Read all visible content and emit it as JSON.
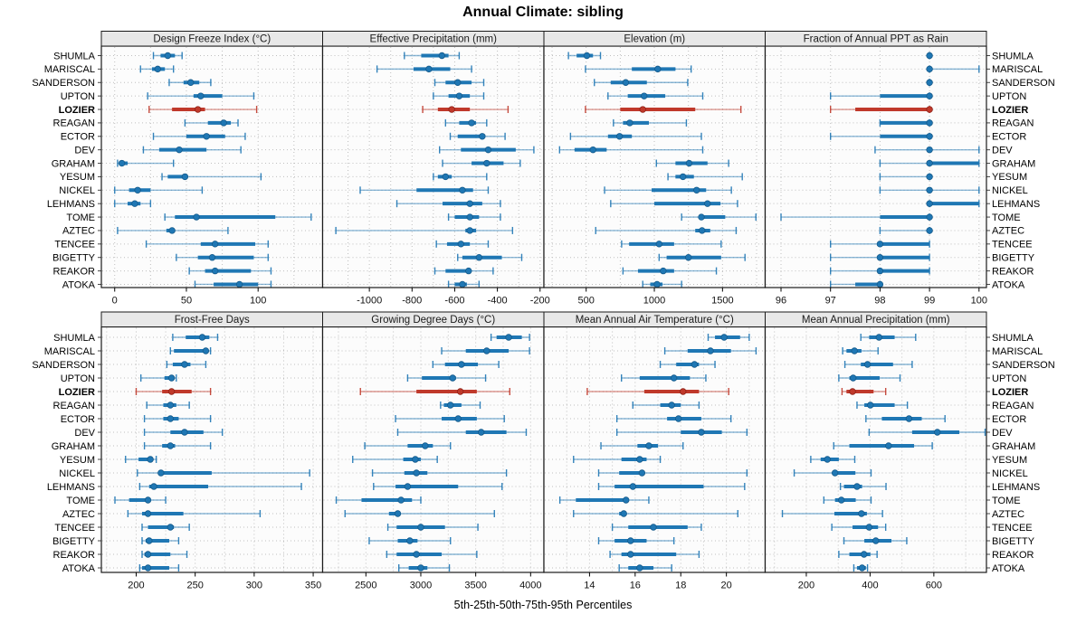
{
  "title": "Annual Climate: sibling",
  "caption": "5th-25th-50th-75th-95th Percentiles",
  "stations": [
    "SHUMLA",
    "MARISCAL",
    "SANDERSON",
    "UPTON",
    "LOZIER",
    "REAGAN",
    "ECTOR",
    "DEV",
    "GRAHAM",
    "YESUM",
    "NICKEL",
    "LEHMANS",
    "TOME",
    "AZTEC",
    "TENCEE",
    "BIGETTY",
    "REAKOR",
    "ATOKA"
  ],
  "highlight_station": "LOZIER",
  "colors": {
    "series": "#1f77b4",
    "series_dark": "#155a8a",
    "highlight": "#c0392b",
    "highlight_dark": "#8f2318",
    "grid": "#bfbfbf",
    "strip_bg": "#e8e8e8",
    "panel_bg": "#fcfcfc",
    "border": "#1a1a1a",
    "tick_text": "#111111"
  },
  "chart_data": {
    "type": "dot-whisker-trellis",
    "percentiles": [
      5,
      25,
      50,
      75,
      95
    ],
    "panels": [
      {
        "title": "Design Freeze Index (°C)",
        "grid_row": 0,
        "grid_col": 0,
        "xlim": [
          -9.3,
          145
        ],
        "ticks": [
          0,
          50,
          100
        ],
        "minor_ticks": [
          25,
          75,
          125
        ],
        "values": [
          [
            27,
            32,
            37,
            42,
            47
          ],
          [
            18,
            26,
            30,
            35,
            41
          ],
          [
            38,
            48,
            53,
            59,
            67
          ],
          [
            23,
            55,
            60,
            75,
            97
          ],
          [
            24,
            40,
            58,
            63,
            99
          ],
          [
            49,
            65,
            76,
            81,
            86
          ],
          [
            27,
            50,
            64,
            77,
            91
          ],
          [
            20,
            31,
            45,
            64,
            88
          ],
          [
            2,
            3,
            5,
            9,
            41
          ],
          [
            33,
            37,
            49,
            50,
            102
          ],
          [
            0,
            10,
            16,
            25,
            61
          ],
          [
            0,
            9,
            14,
            18,
            25
          ],
          [
            35,
            42,
            57,
            112,
            137
          ],
          [
            2,
            36,
            40,
            42,
            79
          ],
          [
            22,
            60,
            70,
            98,
            107
          ],
          [
            43,
            58,
            68,
            97,
            107
          ],
          [
            52,
            63,
            70,
            95,
            109
          ],
          [
            56,
            69,
            87,
            100,
            109
          ]
        ]
      },
      {
        "title": "Effective Precipitation (mm)",
        "grid_row": 0,
        "grid_col": 1,
        "xlim": [
          -1219,
          -182
        ],
        "ticks": [
          -1000,
          -800,
          -600,
          -400,
          -200
        ],
        "minor_ticks": [
          -1100,
          -900,
          -700,
          -500,
          -300
        ],
        "values": [
          [
            -836,
            -757,
            -660,
            -629,
            -579
          ],
          [
            -964,
            -793,
            -721,
            -621,
            -521
          ],
          [
            -693,
            -643,
            -586,
            -521,
            -464
          ],
          [
            -700,
            -629,
            -579,
            -529,
            -464
          ],
          [
            -750,
            -679,
            -614,
            -529,
            -350
          ],
          [
            -643,
            -579,
            -521,
            -500,
            -450
          ],
          [
            -621,
            -586,
            -471,
            -457,
            -364
          ],
          [
            -671,
            -571,
            -443,
            -314,
            -229
          ],
          [
            -657,
            -521,
            -450,
            -371,
            -293
          ],
          [
            -700,
            -679,
            -643,
            -614,
            -450
          ],
          [
            -1043,
            -779,
            -564,
            -514,
            -443
          ],
          [
            -871,
            -657,
            -529,
            -471,
            -386
          ],
          [
            -629,
            -600,
            -529,
            -486,
            -386
          ],
          [
            -1157,
            -550,
            -529,
            -500,
            -329
          ],
          [
            -686,
            -636,
            -571,
            -529,
            -443
          ],
          [
            -586,
            -564,
            -486,
            -379,
            -286
          ],
          [
            -693,
            -643,
            -535,
            -525,
            -420
          ],
          [
            -629,
            -600,
            -564,
            -543,
            -486
          ]
        ]
      },
      {
        "title": "Elevation (m)",
        "grid_row": 0,
        "grid_col": 2,
        "xlim": [
          190,
          1813
        ],
        "ticks": [
          500,
          1000,
          1500
        ],
        "minor_ticks": [
          250,
          750,
          1250,
          1750
        ],
        "values": [
          [
            370,
            430,
            505,
            550,
            605
          ],
          [
            495,
            835,
            1025,
            1155,
            1270
          ],
          [
            560,
            680,
            790,
            945,
            1245
          ],
          [
            660,
            805,
            925,
            1080,
            1355
          ],
          [
            495,
            750,
            915,
            1300,
            1635
          ],
          [
            700,
            770,
            820,
            960,
            1235
          ],
          [
            385,
            660,
            745,
            835,
            1345
          ],
          [
            305,
            415,
            550,
            650,
            1355
          ],
          [
            1015,
            1155,
            1255,
            1390,
            1545
          ],
          [
            1100,
            1155,
            1210,
            1290,
            1645
          ],
          [
            635,
            980,
            1310,
            1380,
            1565
          ],
          [
            680,
            1000,
            1390,
            1485,
            1610
          ],
          [
            1200,
            1335,
            1345,
            1520,
            1745
          ],
          [
            570,
            1300,
            1350,
            1410,
            1600
          ],
          [
            760,
            815,
            1035,
            1145,
            1490
          ],
          [
            1035,
            1090,
            1250,
            1490,
            1665
          ],
          [
            770,
            880,
            1065,
            1145,
            1455
          ],
          [
            915,
            970,
            1020,
            1060,
            1200
          ]
        ]
      },
      {
        "title": "Fraction of Annual PPT as Rain",
        "grid_row": 0,
        "grid_col": 3,
        "xlim": [
          95.68,
          100.15
        ],
        "ticks": [
          96,
          97,
          98,
          99,
          100
        ],
        "minor_ticks": [],
        "values": [
          [
            99,
            99,
            99,
            99,
            99
          ],
          [
            99,
            99,
            99,
            99,
            100
          ],
          [
            99,
            99,
            99,
            99,
            99
          ],
          [
            97,
            98,
            99,
            99,
            99
          ],
          [
            97,
            97.5,
            99,
            99,
            99
          ],
          [
            98,
            98,
            99,
            99,
            99
          ],
          [
            97,
            98,
            99,
            99,
            99
          ],
          [
            97.9,
            99,
            99,
            99,
            100
          ],
          [
            98,
            99,
            99,
            100,
            100
          ],
          [
            98,
            99,
            99,
            99,
            99
          ],
          [
            98,
            99,
            99,
            99,
            100
          ],
          [
            99,
            99,
            99,
            100,
            100
          ],
          [
            96,
            98,
            99,
            99,
            99
          ],
          [
            98,
            99,
            99,
            99,
            99
          ],
          [
            97,
            98,
            98,
            99,
            99
          ],
          [
            97,
            98,
            98,
            99,
            99
          ],
          [
            97,
            98,
            98,
            99,
            99
          ],
          [
            97,
            97.5,
            98,
            98,
            98
          ]
        ]
      },
      {
        "title": "Frost-Free Days",
        "grid_row": 1,
        "grid_col": 0,
        "xlim": [
          170.5,
          358
        ],
        "ticks": [
          200,
          250,
          300,
          350
        ],
        "minor_ticks": [
          175,
          225,
          275,
          325
        ],
        "values": [
          [
            231,
            242,
            256,
            262,
            269
          ],
          [
            229,
            232,
            259,
            261,
            263
          ],
          [
            226,
            231,
            241,
            246,
            259
          ],
          [
            204,
            224,
            230,
            232,
            234
          ],
          [
            200,
            222,
            230,
            247,
            263
          ],
          [
            209,
            223,
            229,
            234,
            245
          ],
          [
            207,
            223,
            229,
            236,
            263
          ],
          [
            207,
            229,
            241,
            257,
            273
          ],
          [
            207,
            222,
            229,
            233,
            263
          ],
          [
            191,
            202,
            212,
            214,
            217
          ],
          [
            201,
            220,
            221,
            264,
            347
          ],
          [
            203,
            211,
            215,
            261,
            340
          ],
          [
            182,
            194,
            210,
            211,
            225
          ],
          [
            193,
            205,
            210,
            240,
            305
          ],
          [
            205,
            210,
            229,
            232,
            245
          ],
          [
            205,
            208,
            211,
            228,
            236
          ],
          [
            205,
            207,
            210,
            229,
            243
          ],
          [
            203,
            205,
            210,
            228,
            236
          ]
        ]
      },
      {
        "title": "Growing Degree Days (°C)",
        "grid_row": 1,
        "grid_col": 1,
        "xlim": [
          2106,
          4121
        ],
        "ticks": [
          2500,
          3000,
          3500,
          4000
        ],
        "minor_ticks": [
          2250,
          2750,
          3250,
          3750
        ],
        "values": [
          [
            3640,
            3690,
            3800,
            3920,
            3990
          ],
          [
            3190,
            3410,
            3600,
            3800,
            3990
          ],
          [
            3110,
            3220,
            3370,
            3520,
            3710
          ],
          [
            2880,
            3010,
            3290,
            3320,
            3590
          ],
          [
            2450,
            2960,
            3360,
            3510,
            3810
          ],
          [
            3180,
            3210,
            3270,
            3370,
            3540
          ],
          [
            2770,
            3190,
            3340,
            3510,
            3760
          ],
          [
            2790,
            3410,
            3550,
            3780,
            3960
          ],
          [
            2490,
            2880,
            3040,
            3110,
            3270
          ],
          [
            2380,
            2840,
            2950,
            3000,
            3150
          ],
          [
            2560,
            2850,
            2960,
            3060,
            3780
          ],
          [
            2570,
            2770,
            2880,
            3340,
            3740
          ],
          [
            2230,
            2460,
            2820,
            2920,
            3000
          ],
          [
            2310,
            2710,
            2790,
            2810,
            3670
          ],
          [
            2700,
            2780,
            3000,
            3220,
            3520
          ],
          [
            2530,
            2790,
            2900,
            2970,
            3270
          ],
          [
            2690,
            2780,
            2960,
            3190,
            3510
          ],
          [
            2800,
            2890,
            3000,
            3060,
            3260
          ]
        ]
      },
      {
        "title": "Mean Annual Air Temperature (°C)",
        "grid_row": 1,
        "grid_col": 2,
        "xlim": [
          12.0,
          21.7
        ],
        "ticks": [
          14,
          16,
          18,
          20
        ],
        "minor_ticks": [
          13,
          15,
          17,
          19,
          21
        ],
        "values": [
          [
            19.2,
            19.5,
            19.9,
            20.6,
            21.0
          ],
          [
            17.3,
            18.3,
            19.3,
            20.2,
            21.3
          ],
          [
            17.1,
            17.8,
            18.6,
            18.8,
            19.5
          ],
          [
            15.4,
            16.2,
            17.7,
            18.4,
            19.1
          ],
          [
            13.9,
            16.4,
            18.1,
            18.8,
            20.1
          ],
          [
            15.9,
            17.1,
            17.6,
            18.0,
            18.8
          ],
          [
            15.2,
            17.4,
            17.9,
            18.9,
            20.2
          ],
          [
            15.2,
            18.0,
            18.9,
            19.8,
            20.9
          ],
          [
            14.5,
            16.1,
            16.6,
            17.0,
            18.1
          ],
          [
            13.3,
            15.4,
            16.2,
            16.5,
            17.1
          ],
          [
            14.4,
            15.3,
            16.3,
            16.4,
            20.9
          ],
          [
            14.4,
            15.1,
            15.9,
            19.0,
            20.8
          ],
          [
            12.7,
            13.4,
            15.6,
            15.7,
            16.6
          ],
          [
            13.3,
            15.3,
            15.5,
            15.6,
            20.5
          ],
          [
            15.0,
            15.7,
            16.8,
            18.3,
            18.9
          ],
          [
            14.4,
            15.1,
            15.8,
            16.5,
            17.7
          ],
          [
            14.9,
            15.4,
            15.8,
            17.8,
            18.8
          ],
          [
            15.3,
            15.7,
            16.2,
            16.8,
            17.6
          ]
        ]
      },
      {
        "title": "Mean Annual Precipitation (mm)",
        "grid_row": 1,
        "grid_col": 3,
        "xlim": [
          71,
          765
        ],
        "ticks": [
          200,
          400,
          600
        ],
        "minor_ticks": [
          100,
          300,
          500,
          700
        ],
        "values": [
          [
            371,
            397,
            428,
            477,
            543
          ],
          [
            314,
            326,
            351,
            373,
            425
          ],
          [
            321,
            371,
            392,
            472,
            532
          ],
          [
            302,
            335,
            347,
            430,
            494
          ],
          [
            312,
            326,
            345,
            411,
            449
          ],
          [
            359,
            382,
            401,
            477,
            517
          ],
          [
            387,
            437,
            522,
            562,
            635
          ],
          [
            397,
            532,
            611,
            680,
            770
          ],
          [
            286,
            335,
            458,
            538,
            595
          ],
          [
            214,
            245,
            266,
            302,
            352
          ],
          [
            162,
            283,
            290,
            354,
            403
          ],
          [
            307,
            318,
            359,
            375,
            450
          ],
          [
            255,
            290,
            310,
            355,
            403
          ],
          [
            125,
            288,
            373,
            390,
            439
          ],
          [
            280,
            345,
            397,
            425,
            449
          ],
          [
            318,
            382,
            418,
            467,
            515
          ],
          [
            302,
            335,
            381,
            401,
            422
          ],
          [
            349,
            359,
            375,
            387,
            392
          ]
        ]
      }
    ]
  }
}
